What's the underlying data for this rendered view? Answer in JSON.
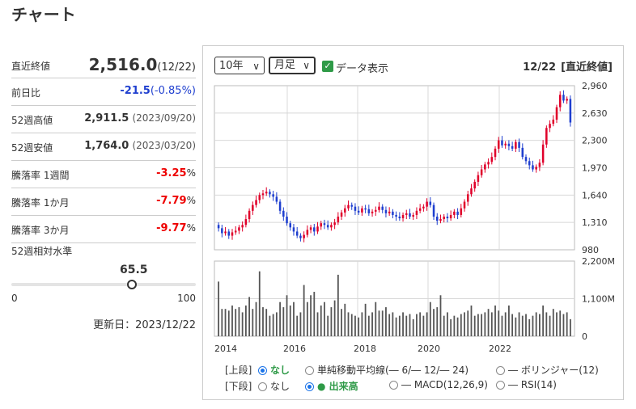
{
  "page_title": "チャート",
  "quote": {
    "latest_label": "直近終値",
    "latest_value": "2,516.0",
    "latest_date": "(12/22)",
    "change_label": "前日比",
    "change_value": "-21.5",
    "change_pct": "(-0.85%)",
    "high52_label": "52週高値",
    "high52_value": "2,911.5",
    "high52_date": "(2023/09/20)",
    "low52_label": "52週安値",
    "low52_value": "1,764.0",
    "low52_date": "(2023/03/20)",
    "rate1w_label": "騰落率 1週間",
    "rate1w_value": "-3.25",
    "rate1m_label": "騰落率 1か月",
    "rate1m_value": "-7.79",
    "rate3m_label": "騰落率 3か月",
    "rate3m_value": "-9.77",
    "pct_unit": "%",
    "level_label": "52週相対水準",
    "level_value": "65.5",
    "level_fraction": 0.655,
    "level_min": "0",
    "level_max": "100",
    "updated": "更新日：2023/12/22"
  },
  "controls": {
    "period": "10年",
    "interval": "月足",
    "data_display_label": "データ表示",
    "data_display_checked": true,
    "header_date": "12/22",
    "header_label": "[直近終値]"
  },
  "legend": {
    "upper_label": "[上段]",
    "lower_label": "[下段]",
    "none": "なし",
    "sma": "単純移動平均線(― 6/― 12/― 24)",
    "bollinger": "― ボリンジャー(12)",
    "volume": "● 出来高",
    "macd": "― MACD(12,26,9)",
    "rsi": "― RSI(14)",
    "upper_selected": "none",
    "lower_selected": "volume"
  },
  "colors": {
    "up": "#e0002a",
    "down": "#1f3fcf",
    "volume": "#555555",
    "grid": "#d8d8d8"
  },
  "chart_data": [
    {
      "type": "candlestick",
      "interval": "monthly",
      "x_ticks": [
        "2014",
        "2016",
        "2018",
        "2020",
        "2022"
      ],
      "y_ticks": [
        "980",
        "1,310",
        "1,640",
        "1,970",
        "2,300",
        "2,630",
        "2,960"
      ],
      "ylim": [
        980,
        2960
      ],
      "close": [
        1240,
        1180,
        1200,
        1150,
        1190,
        1210,
        1250,
        1280,
        1350,
        1450,
        1520,
        1580,
        1640,
        1660,
        1680,
        1650,
        1620,
        1560,
        1450,
        1380,
        1300,
        1250,
        1200,
        1150,
        1120,
        1160,
        1220,
        1250,
        1200,
        1260,
        1300,
        1280,
        1250,
        1280,
        1310,
        1380,
        1430,
        1480,
        1520,
        1500,
        1450,
        1430,
        1480,
        1470,
        1420,
        1440,
        1460,
        1500,
        1460,
        1420,
        1440,
        1400,
        1380,
        1360,
        1400,
        1420,
        1380,
        1400,
        1450,
        1480,
        1500,
        1560,
        1520,
        1380,
        1330,
        1350,
        1380,
        1360,
        1400,
        1440,
        1400,
        1480,
        1560,
        1650,
        1720,
        1800,
        1880,
        1950,
        2010,
        2040,
        2100,
        2200,
        2300,
        2240,
        2260,
        2230,
        2200,
        2280,
        2210,
        2100,
        2050,
        2000,
        1950,
        1980,
        2030,
        2250,
        2450,
        2500,
        2550,
        2700,
        2850,
        2780,
        2800,
        2516
      ],
      "volume_ticks": [
        "0",
        "1,100M",
        "2,200M"
      ],
      "volume_ylim": [
        0,
        2200
      ],
      "volume_millions": [
        1600,
        800,
        800,
        750,
        900,
        800,
        850,
        700,
        900,
        1150,
        800,
        1000,
        1900,
        850,
        800,
        600,
        650,
        700,
        1000,
        850,
        1200,
        900,
        1000,
        600,
        700,
        1500,
        1000,
        1200,
        1300,
        700,
        900,
        1000,
        600,
        850,
        1050,
        1800,
        800,
        950,
        700,
        650,
        600,
        550,
        700,
        950,
        600,
        700,
        1000,
        750,
        750,
        850,
        650,
        700,
        550,
        600,
        700,
        600,
        650,
        500,
        650,
        700,
        600,
        700,
        1000,
        800,
        850,
        1200,
        600,
        700,
        500,
        600,
        550,
        650,
        700,
        750,
        900,
        600,
        650,
        650,
        700,
        800,
        700,
        900,
        750,
        600,
        700,
        900,
        650,
        550,
        700,
        600,
        650,
        500,
        600,
        700,
        650,
        900,
        700,
        600,
        800,
        700,
        750,
        650,
        700,
        500
      ]
    }
  ]
}
